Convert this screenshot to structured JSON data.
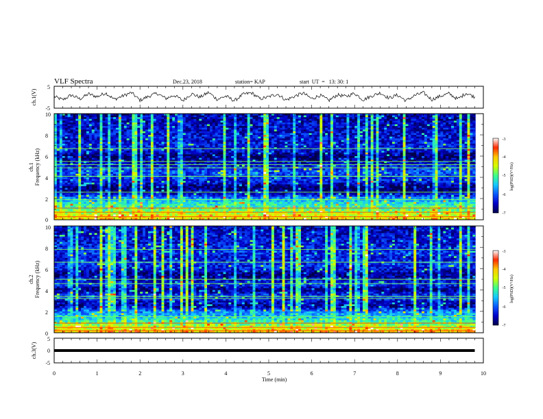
{
  "header": {
    "title": "VLF Spectra",
    "date": "Dec.23, 2018",
    "station": "station= KAP",
    "start": "start  UT  =   13: 30: 1"
  },
  "colors": {
    "colormap": [
      "#00004a",
      "#0000c8",
      "#0a55ff",
      "#14c8ff",
      "#3cff8c",
      "#d2ff00",
      "#ffc800",
      "#ff2a00",
      "#ffffff"
    ]
  },
  "chart_data": [
    {
      "id": "ch1_waveform",
      "type": "line",
      "ylabel": "ch.1(V)",
      "ylim": [
        -5,
        5
      ],
      "yticks": [
        "5",
        "-5"
      ],
      "xlim": [
        0,
        10
      ],
      "note": "noisy waveform oscillating roughly between -2 and +2 V",
      "x": [
        0,
        0.2,
        0.4,
        0.6,
        0.8,
        1.0,
        1.2,
        1.4,
        1.6,
        1.8,
        2.0,
        2.2,
        2.4,
        2.6,
        2.8,
        3.0,
        3.2,
        3.4,
        3.6,
        3.8,
        4.0,
        4.2,
        4.4,
        4.6,
        4.8,
        5.0,
        5.2,
        5.4,
        5.6,
        5.8,
        6.0,
        6.2,
        6.4,
        6.6,
        6.8,
        7.0,
        7.2,
        7.4,
        7.6,
        7.8,
        8.0,
        8.2,
        8.4,
        8.6,
        8.8,
        9.0,
        9.2,
        9.4,
        9.6,
        9.8
      ],
      "y": [
        0.3,
        -1.2,
        1.0,
        -0.8,
        1.5,
        0.2,
        2.0,
        -1.0,
        0.6,
        2.1,
        -1.4,
        0.4,
        1.8,
        -0.6,
        0.9,
        -1.5,
        1.6,
        0.0,
        2.2,
        -1.0,
        0.5,
        -1.6,
        1.3,
        2.0,
        -0.8,
        0.2,
        1.5,
        -1.3,
        0.4,
        1.9,
        -0.7,
        0.9,
        -1.5,
        1.1,
        0.3,
        1.8,
        -1.2,
        0.6,
        2.0,
        -0.4,
        1.0,
        -1.6,
        0.8,
        2.1,
        -1.1,
        0.5,
        1.7,
        -0.9,
        1.9,
        0.1
      ]
    },
    {
      "id": "ch1_spectrogram",
      "type": "heatmap",
      "ylabel_top": "ch.1",
      "ylabel": "Frequency (kHz)",
      "ylim": [
        0,
        10
      ],
      "yticks": [
        "0",
        "2",
        "4",
        "6",
        "8",
        "10"
      ],
      "xlim": [
        0,
        10
      ],
      "colorbar": {
        "label": "log(PSD)(V²/Hz)",
        "range": [
          -7,
          -3
        ],
        "ticks": [
          "-3",
          "-4",
          "-5",
          "-6",
          "-7"
        ]
      },
      "freq_profile": [
        {
          "f": 0.0,
          "v": -4.2
        },
        {
          "f": 0.5,
          "v": -4.4
        },
        {
          "f": 1.0,
          "v": -5.0
        },
        {
          "f": 1.5,
          "v": -5.2
        },
        {
          "f": 2.0,
          "v": -5.7
        },
        {
          "f": 2.5,
          "v": -6.6
        },
        {
          "f": 3.0,
          "v": -6.9
        },
        {
          "f": 3.5,
          "v": -6.4
        },
        {
          "f": 4.0,
          "v": -6.2
        },
        {
          "f": 4.5,
          "v": -6.0
        },
        {
          "f": 5.0,
          "v": -6.3
        },
        {
          "f": 5.5,
          "v": -6.6
        },
        {
          "f": 6.0,
          "v": -6.9
        },
        {
          "f": 6.5,
          "v": -6.4
        },
        {
          "f": 7.0,
          "v": -6.3
        },
        {
          "f": 7.5,
          "v": -6.4
        },
        {
          "f": 8.0,
          "v": -6.4
        },
        {
          "f": 8.5,
          "v": -6.5
        },
        {
          "f": 9.0,
          "v": -6.5
        },
        {
          "f": 9.5,
          "v": -6.6
        },
        {
          "f": 10.0,
          "v": -6.6
        }
      ],
      "lines_khz": [
        0.3,
        0.7,
        1.1,
        1.9,
        2.6,
        4.1,
        4.9,
        5.2,
        5.5,
        6.7
      ]
    },
    {
      "id": "ch2_spectrogram",
      "type": "heatmap",
      "ylabel_top": "ch.2",
      "ylabel": "Frequency (kHz)",
      "ylim": [
        0,
        10
      ],
      "yticks": [
        "0",
        "2",
        "4",
        "6",
        "8",
        "10"
      ],
      "xlim": [
        0,
        10
      ],
      "colorbar": {
        "label": "log(PSD)(V²/Hz)",
        "range": [
          -7,
          -3
        ],
        "ticks": [
          "-3",
          "-4",
          "-5",
          "-6",
          "-7"
        ]
      },
      "freq_profile": [
        {
          "f": 0.0,
          "v": -4.0
        },
        {
          "f": 0.5,
          "v": -4.5
        },
        {
          "f": 1.0,
          "v": -5.1
        },
        {
          "f": 1.5,
          "v": -5.5
        },
        {
          "f": 2.0,
          "v": -5.8
        },
        {
          "f": 2.5,
          "v": -6.7
        },
        {
          "f": 3.0,
          "v": -6.4
        },
        {
          "f": 3.5,
          "v": -6.1
        },
        {
          "f": 4.0,
          "v": -6.8
        },
        {
          "f": 4.5,
          "v": -6.2
        },
        {
          "f": 5.0,
          "v": -6.5
        },
        {
          "f": 5.5,
          "v": -6.8
        },
        {
          "f": 6.0,
          "v": -6.3
        },
        {
          "f": 6.5,
          "v": -6.2
        },
        {
          "f": 7.0,
          "v": -6.4
        },
        {
          "f": 7.5,
          "v": -6.2
        },
        {
          "f": 8.0,
          "v": -6.3
        },
        {
          "f": 8.5,
          "v": -6.4
        },
        {
          "f": 9.0,
          "v": -6.4
        },
        {
          "f": 9.5,
          "v": -6.5
        },
        {
          "f": 10.0,
          "v": -6.5
        }
      ],
      "lines_khz": [
        0.2,
        0.5,
        0.9,
        1.5,
        3.2,
        3.4,
        4.6,
        5.0,
        6.6,
        7.8
      ]
    },
    {
      "id": "ch3_waveform",
      "type": "line",
      "ylabel": "ch.3(V)",
      "ylim": [
        -5,
        5
      ],
      "yticks": [
        "5",
        "0",
        "-5"
      ],
      "xlim": [
        0,
        10
      ],
      "xlabel": "Time (min)",
      "xticks": [
        "0",
        "1",
        "2",
        "3",
        "4",
        "5",
        "6",
        "7",
        "8",
        "9",
        "10"
      ],
      "x": [
        0,
        9.8
      ],
      "y": [
        0,
        0
      ]
    }
  ]
}
